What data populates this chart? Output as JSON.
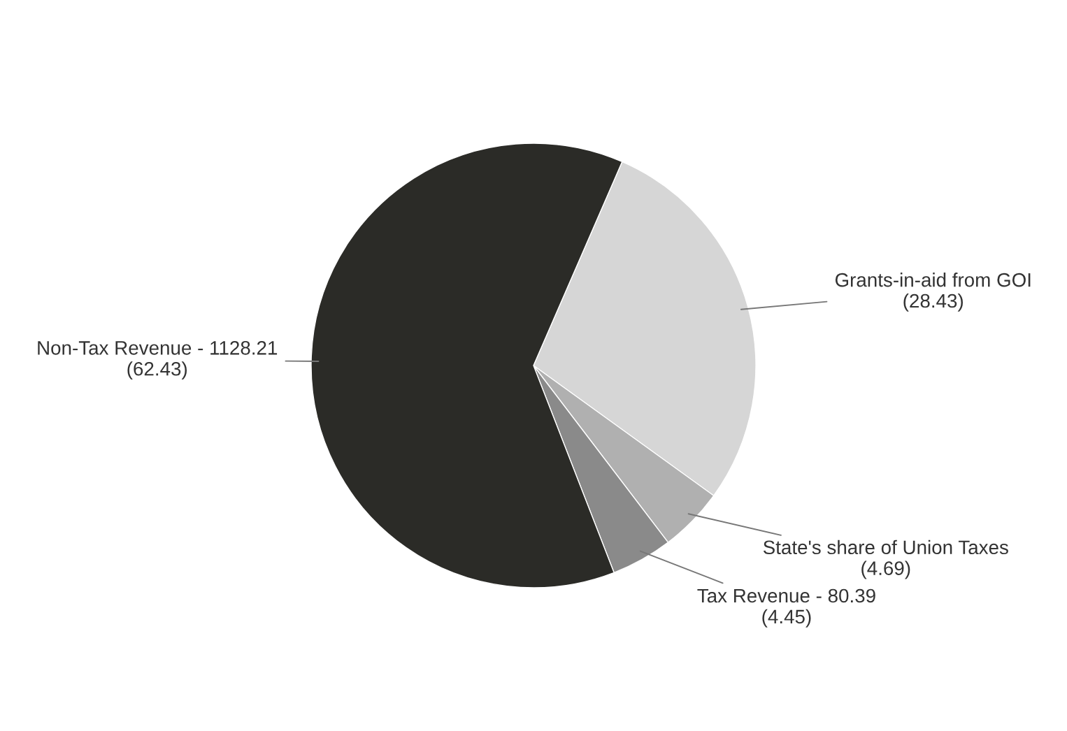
{
  "chart_data": {
    "type": "pie",
    "categories": [
      "Non-Tax Revenue",
      "Grants-in-aid from GOI",
      "State's share of Union Taxes",
      "Tax Revenue"
    ],
    "values": [
      1128.21,
      513.8,
      84.8,
      80.39
    ],
    "value_labels": [
      "1128.21",
      null,
      null,
      "80.39"
    ],
    "annotations": [
      "(62.43)",
      "(28.43)",
      "(4.69)",
      "(4.45)"
    ],
    "colors": [
      "#2b2b27",
      "#d6d6d6",
      "#b0b0b0",
      "#8a8a8a"
    ]
  }
}
